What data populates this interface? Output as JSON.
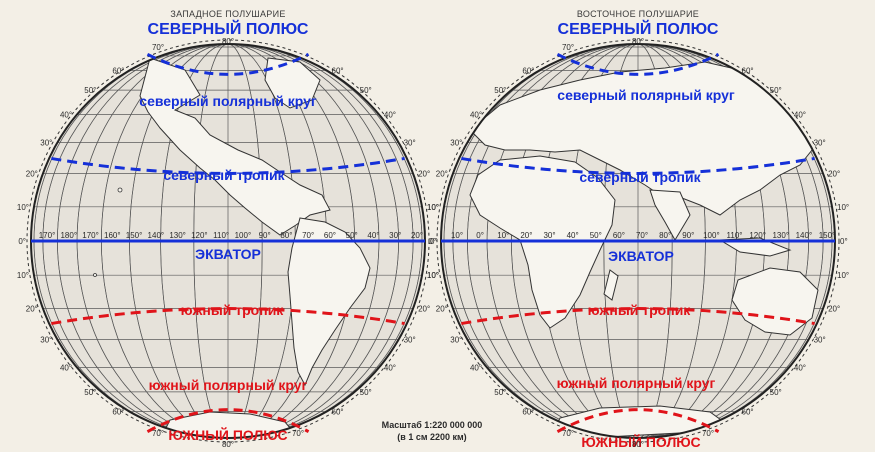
{
  "western": {
    "title": "ЗАПАДНОЕ ПОЛУШАРИЕ",
    "north_pole": "СЕВЕРНЫЙ ПОЛЮС",
    "arctic_circle": "северный полярный круг",
    "tropic_north": "северный тропик",
    "equator": "ЭКВАТОР",
    "tropic_south": "южный тропик",
    "antarctic_circle": "южный полярный круг",
    "south_pole": "ЮЖНЫЙ ПОЛЮС",
    "equator_longitudes": [
      "170°",
      "180°",
      "170°",
      "160°",
      "150°",
      "140°",
      "130°",
      "120°",
      "110°",
      "100°",
      "90°",
      "80°",
      "70°",
      "60°",
      "50°",
      "40°",
      "30°",
      "20°"
    ],
    "top_longitudes": [
      "70°",
      "80°"
    ],
    "bottom_longitudes": [
      "70°",
      "80°",
      "70°"
    ],
    "lat_left": [
      "60°",
      "50°",
      "40°",
      "30°",
      "20°",
      "10°",
      "0°",
      "10°",
      "20°",
      "30°",
      "40°",
      "50°",
      "60°"
    ],
    "lat_right": [
      "60°",
      "50°",
      "40°",
      "30°",
      "20°",
      "10°",
      "0°",
      "10°",
      "20°",
      "30°",
      "40°",
      "50°",
      "60°"
    ]
  },
  "eastern": {
    "title": "ВОСТОЧНОЕ ПОЛУШАРИЕ",
    "north_pole": "СЕВЕРНЫЙ ПОЛЮС",
    "arctic_circle": "северный полярный круг",
    "tropic_north": "северный тропик",
    "equator": "ЭКВАТОР",
    "tropic_south": "южный тропик",
    "antarctic_circle": "южный полярный круг",
    "south_pole": "ЮЖНЫЙ ПОЛЮС",
    "equator_longitudes": [
      "10°",
      "0°",
      "10°",
      "20°",
      "30°",
      "40°",
      "50°",
      "60°",
      "70°",
      "80°",
      "90°",
      "100°",
      "110°",
      "120°",
      "130°",
      "140°",
      "150°"
    ],
    "top_longitudes": [
      "70°",
      "80°"
    ],
    "bottom_longitudes": [
      "70°",
      "80°",
      "70°"
    ],
    "lat_left": [
      "60°",
      "50°",
      "40°",
      "30°",
      "20°",
      "10°",
      "0°",
      "10°",
      "20°",
      "30°",
      "40°",
      "50°",
      "60°"
    ],
    "lat_right": [
      "60°",
      "50°",
      "40°",
      "30°",
      "20°",
      "10°",
      "0°",
      "10°",
      "20°",
      "30°",
      "40°",
      "50°",
      "60°"
    ]
  },
  "scale": {
    "line1": "Масштаб 1:220 000 000",
    "line2": "(в 1 см 2200 км)"
  },
  "colors": {
    "north_lines": "#1530d8",
    "south_lines": "#e0141a",
    "ocean": "#e6e2da",
    "land": "#f7f5ef"
  }
}
